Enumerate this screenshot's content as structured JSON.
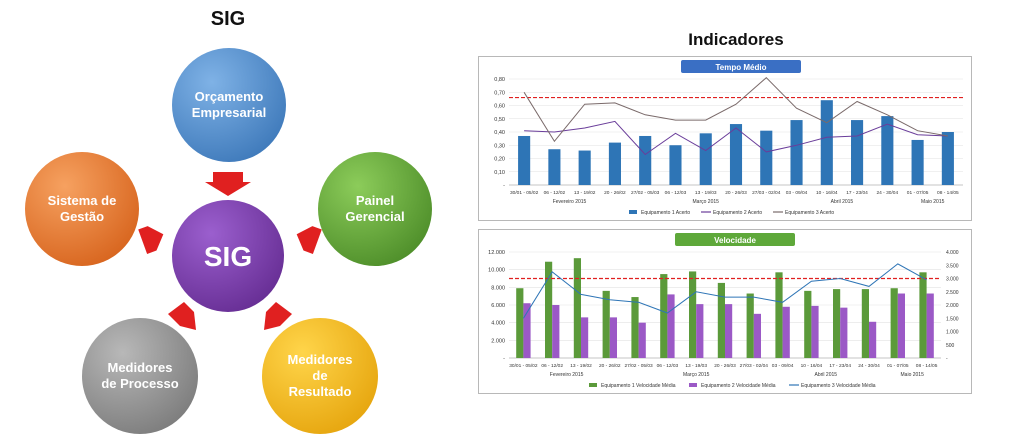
{
  "diagram": {
    "title": "SIG",
    "center": "SIG",
    "nodes": {
      "orcamento": "Orçamento\nEmpresarial",
      "painel": "Painel\nGerencial",
      "resultado": "Medidores\nde\nResultado",
      "processo": "Medidores\nde Processo",
      "gestao": "Sistema de\nGestão"
    },
    "colors": {
      "orcamento": "#4a86c8",
      "painel": "#5e9e2e",
      "resultado": "#f0b400",
      "processo": "#8c8c8c",
      "gestao": "#e8701e",
      "center": "#6a2f9a",
      "arrow": "#e02020"
    }
  },
  "indicadores": {
    "title": "Indicadores"
  },
  "chart_data": [
    {
      "type": "bar",
      "title": "Tempo Médio",
      "categories": [
        "30/01 - 05/02",
        "06 - 12/02",
        "13 - 19/02",
        "20 - 26/02",
        "27/02 - 05/03",
        "06 - 12/03",
        "13 - 19/03",
        "20 - 26/03",
        "27/03 - 02/04",
        "03 - 09/04",
        "10 - 16/04",
        "17 - 23/04",
        "24 - 30/04",
        "01 - 07/05",
        "08 - 14/05"
      ],
      "months": [
        "Fevereiro 2015",
        "Março 2015",
        "Abril 2015",
        "Maio 2015"
      ],
      "y_ticks": [
        "0,80",
        "0,70",
        "0,60",
        "0,50",
        "0,40",
        "0,30",
        "0,20",
        "0,10",
        "-"
      ],
      "ylim": [
        0,
        0.8
      ],
      "target": 0.66,
      "series": [
        {
          "name": "Equipamento 1 Acerto",
          "kind": "bar",
          "color": "#2e75b6",
          "values": [
            0.37,
            0.27,
            0.26,
            0.32,
            0.37,
            0.3,
            0.39,
            0.46,
            0.41,
            0.49,
            0.64,
            0.49,
            0.52,
            0.34,
            0.4
          ]
        },
        {
          "name": "Equipamento 2 Acerto",
          "kind": "line",
          "color": "#6a3d9a",
          "values": [
            0.41,
            0.4,
            0.43,
            0.48,
            0.23,
            0.39,
            0.26,
            0.43,
            0.25,
            0.3,
            0.36,
            0.37,
            0.46,
            0.38,
            0.37
          ]
        },
        {
          "name": "Equipamento 3 Acerto",
          "kind": "line",
          "color": "#7a6a6a",
          "values": [
            0.7,
            0.33,
            0.61,
            0.62,
            0.53,
            0.49,
            0.49,
            0.61,
            0.81,
            0.58,
            0.47,
            0.63,
            0.53,
            0.41,
            0.37
          ]
        }
      ]
    },
    {
      "type": "bar",
      "title": "Velocidade",
      "categories": [
        "30/01 - 05/02",
        "06 - 12/02",
        "13 - 19/02",
        "20 - 26/02",
        "27/02 - 05/03",
        "06 - 12/03",
        "13 - 19/03",
        "20 - 26/03",
        "27/03 - 02/04",
        "03 - 09/04",
        "10 - 16/04",
        "17 - 23/04",
        "24 - 30/04",
        "01 - 07/05",
        "08 - 14/05"
      ],
      "months": [
        "Fevereiro 2015",
        "Março 2015",
        "Abril 2015",
        "Maio 2015"
      ],
      "y_ticks": [
        "12.000",
        "10.000",
        "8.000",
        "6.000",
        "4.000",
        "2.000",
        "-"
      ],
      "y2_ticks": [
        "4.000",
        "3.500",
        "3.000",
        "2.500",
        "2.000",
        "1.500",
        "1.000",
        "500",
        "-"
      ],
      "ylim": [
        0,
        12000
      ],
      "y2lim": [
        0,
        4000
      ],
      "target": 9000,
      "series": [
        {
          "name": "Equipamento 1 Velocidade Média",
          "kind": "bar",
          "color": "#5b9a3a",
          "values": [
            7900,
            10900,
            11300,
            7600,
            6900,
            9500,
            9800,
            8500,
            7300,
            9700,
            7600,
            7800,
            7800,
            7900,
            9700
          ]
        },
        {
          "name": "Equipamento 2 Velocidade Média",
          "kind": "bar",
          "color": "#9b59c6",
          "values": [
            6200,
            6000,
            4600,
            4600,
            4000,
            7200,
            6100,
            6100,
            5000,
            5800,
            5900,
            5700,
            4100,
            7300,
            7300
          ]
        },
        {
          "name": "Equipamento 3 Velocidade Média",
          "kind": "line",
          "axis": "y2",
          "color": "#2e75b6",
          "values": [
            1500,
            3250,
            2400,
            2200,
            2100,
            1700,
            2500,
            2300,
            2300,
            2100,
            2900,
            3000,
            2700,
            3550,
            2950
          ]
        }
      ]
    }
  ]
}
